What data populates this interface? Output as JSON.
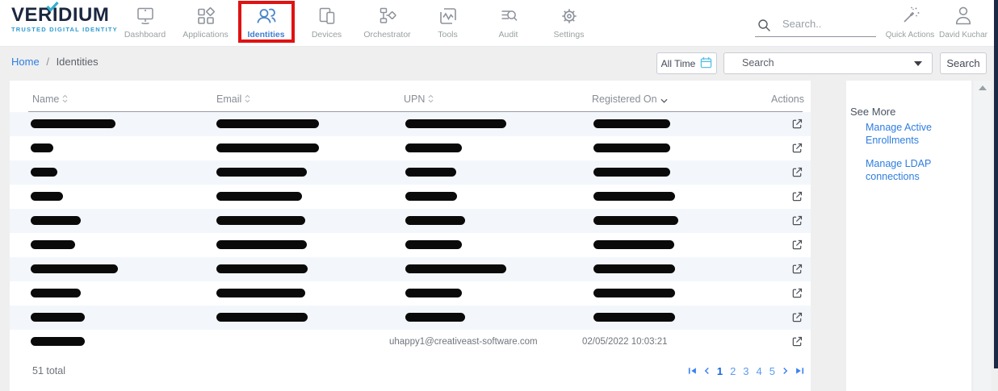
{
  "brand": {
    "name": "VERIDIUM",
    "tagline": "TRUSTED DIGITAL IDENTITY"
  },
  "nav": {
    "items": [
      {
        "label": "Dashboard",
        "icon": "monitor-icon",
        "active": false
      },
      {
        "label": "Applications",
        "icon": "apps-icon",
        "active": false
      },
      {
        "label": "Identities",
        "icon": "identities-icon",
        "active": true,
        "highlighted": true
      },
      {
        "label": "Devices",
        "icon": "devices-icon",
        "active": false
      },
      {
        "label": "Orchestrator",
        "icon": "orchestrator-icon",
        "active": false
      },
      {
        "label": "Tools",
        "icon": "tools-icon",
        "active": false
      },
      {
        "label": "Audit",
        "icon": "audit-icon",
        "active": false
      },
      {
        "label": "Settings",
        "icon": "settings-icon",
        "active": false
      }
    ]
  },
  "topbar": {
    "search_placeholder": "Search..",
    "quick_actions_label": "Quick Actions",
    "user_name": "David Kuchar"
  },
  "breadcrumb": {
    "home": "Home",
    "separator": "/",
    "current": "Identities"
  },
  "filters": {
    "time_range_label": "All Time",
    "search_dropdown_value": "Search",
    "search_button_label": "Search"
  },
  "table": {
    "columns": [
      {
        "label": "Name",
        "sort": "both"
      },
      {
        "label": "Email",
        "sort": "both"
      },
      {
        "label": "UPN",
        "sort": "both"
      },
      {
        "label": "Registered On",
        "sort": "desc"
      },
      {
        "label": "Actions",
        "sort": "none"
      }
    ],
    "rows": [
      {
        "name_redacted_w": 105,
        "email_redacted_w": 127,
        "upn_redacted_w": 125,
        "registered_redacted_w": 95
      },
      {
        "name_redacted_w": 28,
        "email_redacted_w": 127,
        "upn_redacted_w": 70,
        "registered_redacted_w": 95
      },
      {
        "name_redacted_w": 33,
        "email_redacted_w": 112,
        "upn_redacted_w": 63,
        "registered_redacted_w": 95
      },
      {
        "name_redacted_w": 40,
        "email_redacted_w": 106,
        "upn_redacted_w": 64,
        "registered_redacted_w": 101
      },
      {
        "name_redacted_w": 62,
        "email_redacted_w": 110,
        "upn_redacted_w": 74,
        "registered_redacted_w": 105
      },
      {
        "name_redacted_w": 55,
        "email_redacted_w": 112,
        "upn_redacted_w": 70,
        "registered_redacted_w": 100
      },
      {
        "name_redacted_w": 108,
        "email_redacted_w": 113,
        "upn_redacted_w": 125,
        "registered_redacted_w": 101
      },
      {
        "name_redacted_w": 62,
        "email_redacted_w": 110,
        "upn_redacted_w": 70,
        "registered_redacted_w": 101
      },
      {
        "name_redacted_w": 67,
        "email_redacted_w": 113,
        "upn_redacted_w": 74,
        "registered_redacted_w": 101
      },
      {
        "name_redacted_w": 67,
        "email_redacted_w": 0,
        "upn_text": "uhappy1@creativeast-software.com",
        "registered_text": "02/05/2022 10:03:21"
      }
    ],
    "total_label": "51 total"
  },
  "pagination": {
    "pages": [
      "1",
      "2",
      "3",
      "4",
      "5"
    ],
    "current_page": "1"
  },
  "see_more": {
    "title": "See More",
    "links": [
      "Manage Active Enrollments",
      "Manage LDAP connections"
    ]
  },
  "colors": {
    "accent_blue": "#3b82f0",
    "link_blue": "#2e7de0",
    "highlight_red": "#e01212",
    "logo_navy": "#1b2740",
    "tagline_blue": "#2c9bd0",
    "nav_active_blue": "#4a86c8",
    "row_alt_bg": "#f3f7fb",
    "edge_strip": "#1b2944"
  }
}
